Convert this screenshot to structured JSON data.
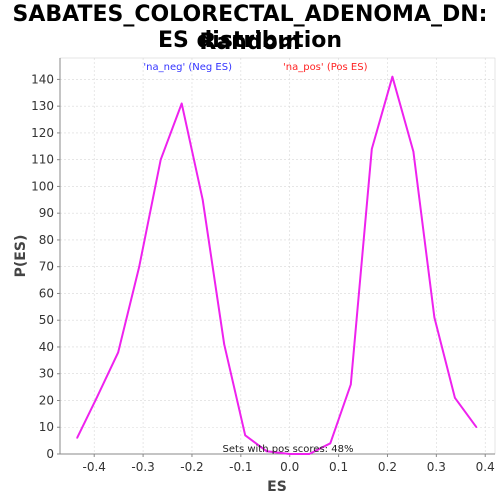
{
  "chart_data": {
    "type": "line",
    "title_line1": "SABATES_COLORECTAL_ADENOMA_DN: Random",
    "title_line2": "ES distribution",
    "xlabel": "ES",
    "ylabel": "P(ES)",
    "xlim": [
      -0.47,
      0.42
    ],
    "ylim": [
      0,
      148
    ],
    "xticks": [
      "-0.4",
      "-0.3",
      "-0.2",
      "-0.1",
      "0.0",
      "0.1",
      "0.2",
      "0.3",
      "0.4"
    ],
    "yticks": [
      "0",
      "10",
      "20",
      "30",
      "40",
      "50",
      "60",
      "70",
      "80",
      "90",
      "100",
      "110",
      "120",
      "130",
      "140"
    ],
    "grid": true,
    "legend": [
      {
        "label": "'na_neg' (Neg ES)",
        "color": "#3333ff"
      },
      {
        "label": "'na_pos' (Pos ES)",
        "color": "#ff2222"
      }
    ],
    "note": "Sets with pos scores: 48%",
    "series": [
      {
        "color": "#ee22ee",
        "x": [
          -0.435,
          -0.395,
          -0.351,
          -0.308,
          -0.264,
          -0.221,
          -0.178,
          -0.134,
          -0.091,
          -0.047,
          0.0,
          0.04,
          0.083,
          0.125,
          0.168,
          0.21,
          0.253,
          0.296,
          0.338,
          0.382
        ],
        "y": [
          6,
          21,
          38,
          70,
          110,
          131,
          95,
          41,
          7,
          1,
          0,
          0,
          4,
          26,
          114,
          141,
          113,
          51,
          21,
          10
        ]
      }
    ]
  }
}
